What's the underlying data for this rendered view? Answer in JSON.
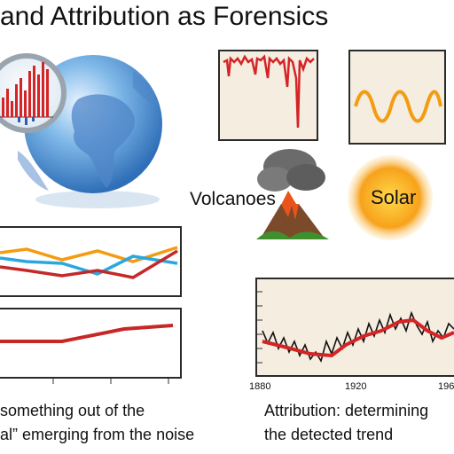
{
  "title": "and Attribution as Forensics",
  "labels": {
    "volcanoes": "Volcanoes",
    "solar": "Solar"
  },
  "bottom_chart": {
    "x_ticks": [
      "1880",
      "1920",
      "196"
    ]
  },
  "captions": {
    "left_line1": "something out of the",
    "left_line2": "al” emerging from the noise",
    "right_line1": "Attribution: determining",
    "right_line2": "the detected trend"
  },
  "icons": [
    "magnifier-globe-icon",
    "volcano-icon",
    "sun-icon"
  ],
  "colors": {
    "red": "#d42426",
    "orange": "#f39c12",
    "blue": "#29a8e0",
    "panel": "#f4ede0"
  }
}
